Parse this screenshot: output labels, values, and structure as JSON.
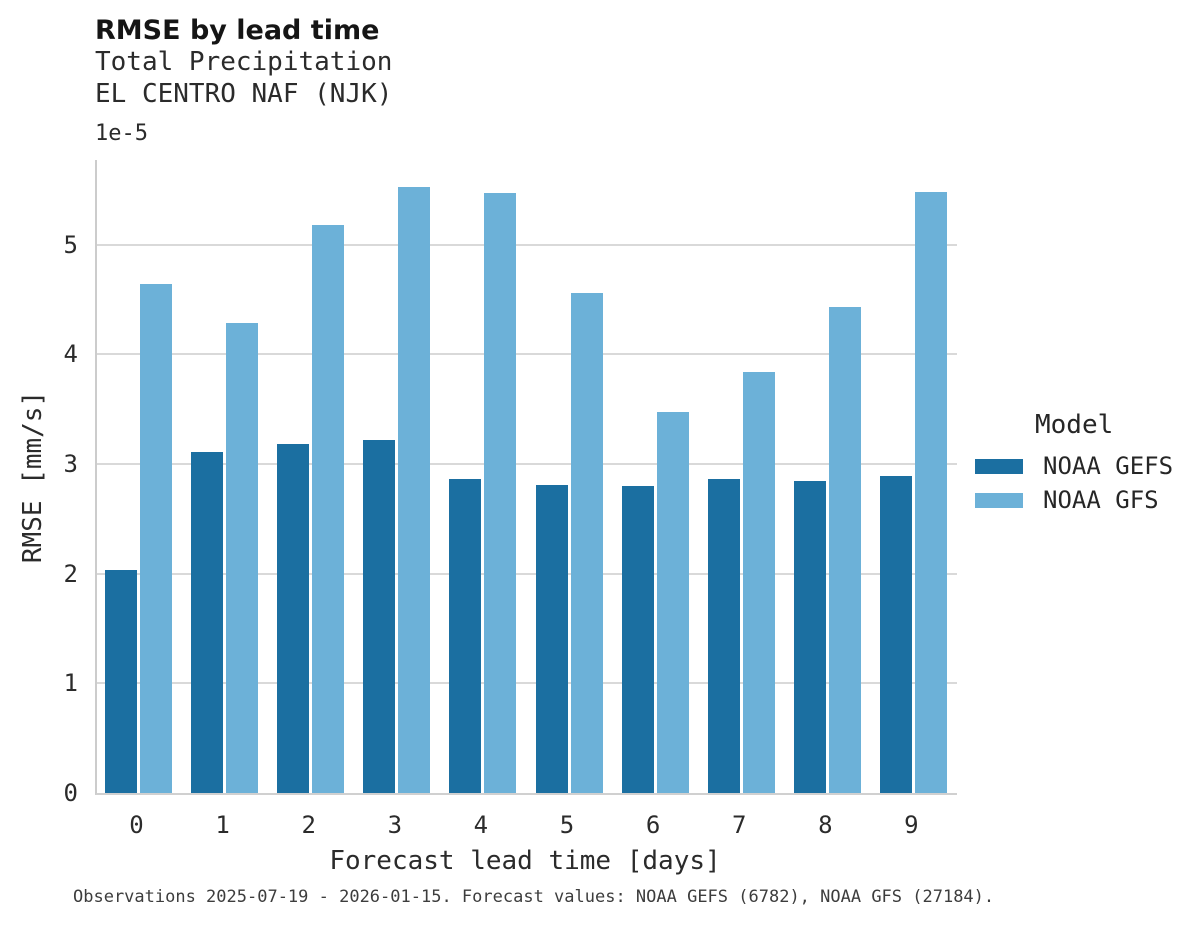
{
  "header": {
    "title": "RMSE by lead time",
    "subtitle": "Total Precipitation",
    "station": "EL CENTRO NAF (NJK)"
  },
  "axes": {
    "offset_text": "1e-5",
    "y_label": "RMSE [mm/s]",
    "x_label": "Forecast lead time [days]",
    "y_ticks": [
      "0",
      "1",
      "2",
      "3",
      "4",
      "5"
    ],
    "x_ticks": [
      "0",
      "1",
      "2",
      "3",
      "4",
      "5",
      "6",
      "7",
      "8",
      "9"
    ]
  },
  "legend": {
    "title": "Model",
    "entries": [
      {
        "label": "NOAA GEFS",
        "color": "#1b6fa1"
      },
      {
        "label": "NOAA GFS",
        "color": "#6cb1d8"
      }
    ]
  },
  "caption": "Observations 2025-07-19 - 2026-01-15. Forecast values: NOAA GEFS (6782), NOAA GFS (27184).",
  "colors": {
    "gefs_dark_blue": "#1b6fa1",
    "gfs_light_blue": "#6cb1d8",
    "gridline": "#d9d9d9",
    "spine": "#cccccc"
  },
  "chart_data": {
    "type": "bar",
    "title": "RMSE by lead time",
    "subtitle": "Total Precipitation",
    "station": "EL CENTRO NAF (NJK)",
    "xlabel": "Forecast lead time [days]",
    "ylabel": "RMSE [mm/s]",
    "y_scale_multiplier": "1e-5",
    "categories": [
      0,
      1,
      2,
      3,
      4,
      5,
      6,
      7,
      8,
      9
    ],
    "series": [
      {
        "name": "NOAA GEFS",
        "color": "#1b6fa1",
        "values_1e5": [
          2.03,
          3.11,
          3.18,
          3.22,
          2.86,
          2.81,
          2.8,
          2.86,
          2.84,
          2.89
        ]
      },
      {
        "name": "NOAA GFS",
        "color": "#6cb1d8",
        "values_1e5": [
          4.64,
          4.28,
          5.18,
          5.52,
          5.47,
          4.56,
          3.47,
          3.84,
          4.43,
          5.48
        ]
      }
    ],
    "ylim_1e5": [
      0,
      5.77
    ],
    "y_gridlines_1e5": [
      1,
      2,
      3,
      4,
      5
    ],
    "grid": true,
    "legend_title": "Model",
    "legend_position": "right"
  }
}
